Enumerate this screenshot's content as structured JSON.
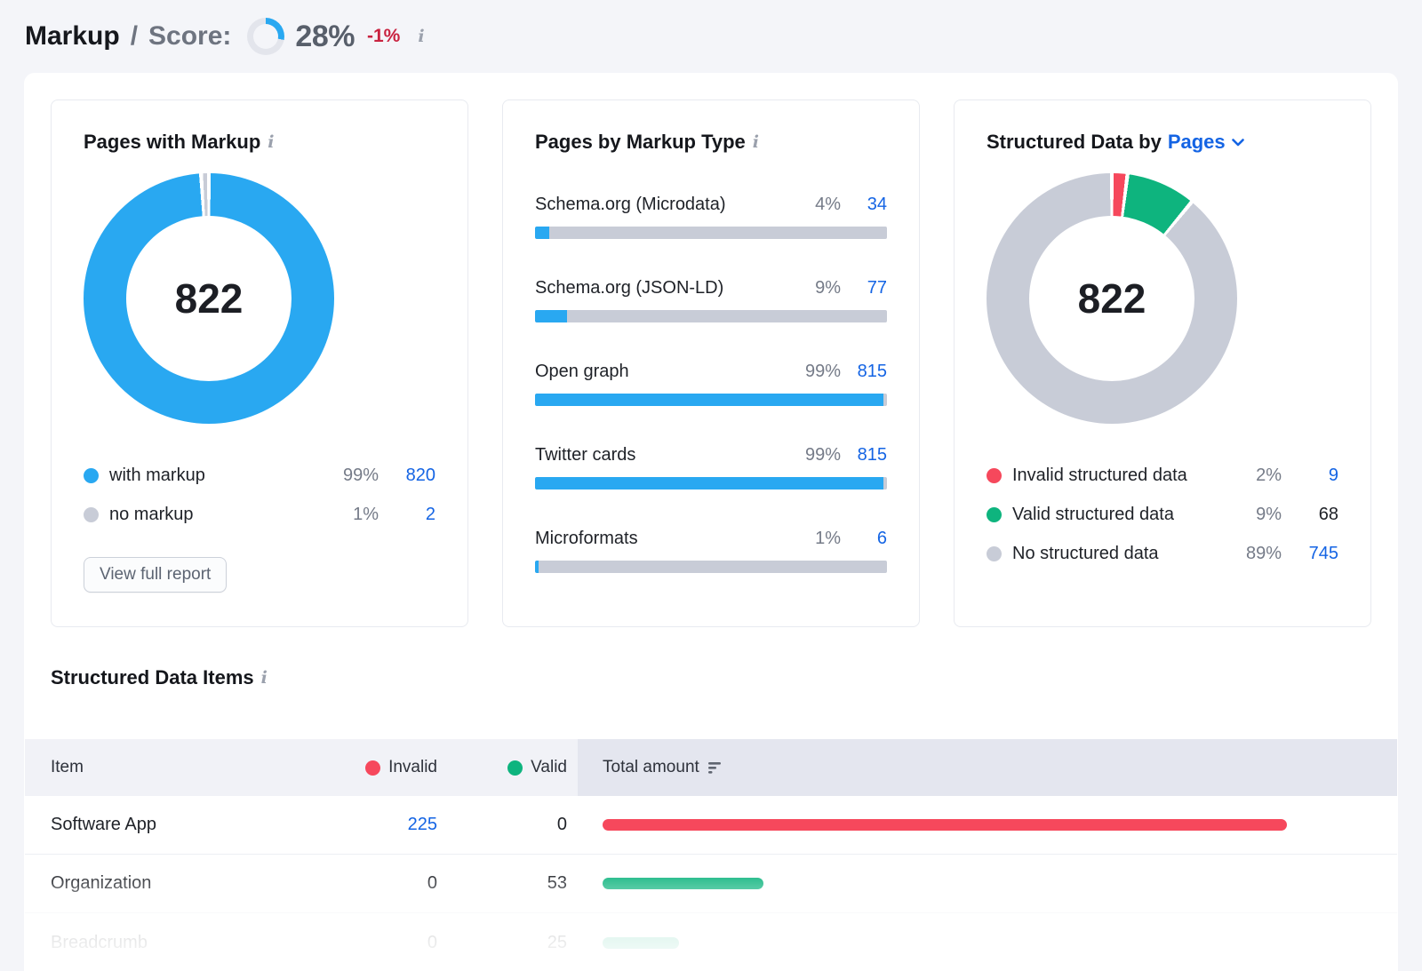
{
  "colors": {
    "chart_blue": "#29a8f1",
    "chart_gray": "#c8ccd7",
    "red": "#f6485c",
    "green": "#0eb47e",
    "link_blue": "#1464e4",
    "delta_red": "#c92340",
    "score_track": "#e3e5ec"
  },
  "icons": {
    "info": "i"
  },
  "header": {
    "title": "Markup",
    "separator": "/",
    "subtitle": "Score:",
    "score_value": "28%",
    "score_delta": "-1%",
    "score": {
      "pct": 28,
      "hex": "#29a8f1",
      "track": "#e3e5ec"
    }
  },
  "cards": {
    "pages_with_markup": {
      "title": "Pages with Markup",
      "total": "822",
      "segments": [
        {
          "label": "with markup",
          "pct": 99,
          "pct_label": "99%",
          "count": "820",
          "hex": "#29a8f1",
          "link": true
        },
        {
          "label": "no markup",
          "pct": 1,
          "pct_label": "1%",
          "count": "2",
          "hex": "#c8ccd7",
          "link": true
        }
      ],
      "button_label": "View full report"
    },
    "pages_by_markup_type": {
      "title": "Pages by Markup Type",
      "rows": [
        {
          "label": "Schema.org (Microdata)",
          "pct_label": "4%",
          "count": "34",
          "fill_pct": 4
        },
        {
          "label": "Schema.org (JSON-LD)",
          "pct_label": "9%",
          "count": "77",
          "fill_pct": 9
        },
        {
          "label": "Open graph",
          "pct_label": "99%",
          "count": "815",
          "fill_pct": 99
        },
        {
          "label": "Twitter cards",
          "pct_label": "99%",
          "count": "815",
          "fill_pct": 99
        },
        {
          "label": "Microformats",
          "pct_label": "1%",
          "count": "6",
          "fill_pct": 1
        }
      ]
    },
    "structured_data_by": {
      "title": "Structured Data by",
      "selector_value": "Pages",
      "total": "822",
      "segments": [
        {
          "label": "Invalid structured data",
          "pct": 2,
          "pct_label": "2%",
          "count": "9",
          "hex": "#f6485c",
          "link": true
        },
        {
          "label": "Valid structured data",
          "pct": 9,
          "pct_label": "9%",
          "count": "68",
          "hex": "#0eb47e",
          "link": false
        },
        {
          "label": "No structured data",
          "pct": 89,
          "pct_label": "89%",
          "count": "745",
          "hex": "#c8ccd7",
          "link": true
        }
      ]
    }
  },
  "table": {
    "title": "Structured Data Items",
    "columns": {
      "item": "Item",
      "invalid": "Invalid",
      "valid": "Valid",
      "total": "Total amount"
    },
    "max_total": 225,
    "rows": [
      {
        "item": "Software App",
        "invalid": "225",
        "invalid_link": true,
        "valid": "0",
        "total": 225,
        "hex": "#f6485c"
      },
      {
        "item": "Organization",
        "invalid": "0",
        "invalid_link": false,
        "valid": "53",
        "total": 53,
        "hex": "#0eb47e"
      },
      {
        "item": "Breadcrumb",
        "invalid": "0",
        "invalid_link": false,
        "valid": "25",
        "total": 25,
        "hex": "#0eb47e"
      }
    ]
  },
  "chart_data": [
    {
      "type": "pie",
      "title": "Pages with Markup",
      "center_total": 822,
      "labels": [
        "with markup",
        "no markup"
      ],
      "values": [
        820,
        2
      ],
      "percentages": [
        99,
        1
      ],
      "colors": [
        "#29a8f1",
        "#c8ccd7"
      ],
      "legend_position": "bottom"
    },
    {
      "type": "bar",
      "title": "Pages by Markup Type",
      "categories": [
        "Schema.org (Microdata)",
        "Schema.org (JSON-LD)",
        "Open graph",
        "Twitter cards",
        "Microformats"
      ],
      "values": [
        34,
        77,
        815,
        815,
        6
      ],
      "percentages": [
        4,
        9,
        99,
        99,
        1
      ],
      "xlim": [
        0,
        100
      ],
      "orientation": "horizontal"
    },
    {
      "type": "pie",
      "title": "Structured Data by Pages",
      "center_total": 822,
      "labels": [
        "Invalid structured data",
        "Valid structured data",
        "No structured data"
      ],
      "values": [
        9,
        68,
        745
      ],
      "percentages": [
        2,
        9,
        89
      ],
      "colors": [
        "#f6485c",
        "#0eb47e",
        "#c8ccd7"
      ],
      "legend_position": "bottom"
    },
    {
      "type": "table",
      "title": "Structured Data Items",
      "columns": [
        "Item",
        "Invalid",
        "Valid",
        "Total amount"
      ],
      "rows": [
        [
          "Software App",
          225,
          0,
          225
        ],
        [
          "Organization",
          0,
          53,
          53
        ],
        [
          "Breadcrumb",
          0,
          25,
          25
        ]
      ]
    }
  ]
}
